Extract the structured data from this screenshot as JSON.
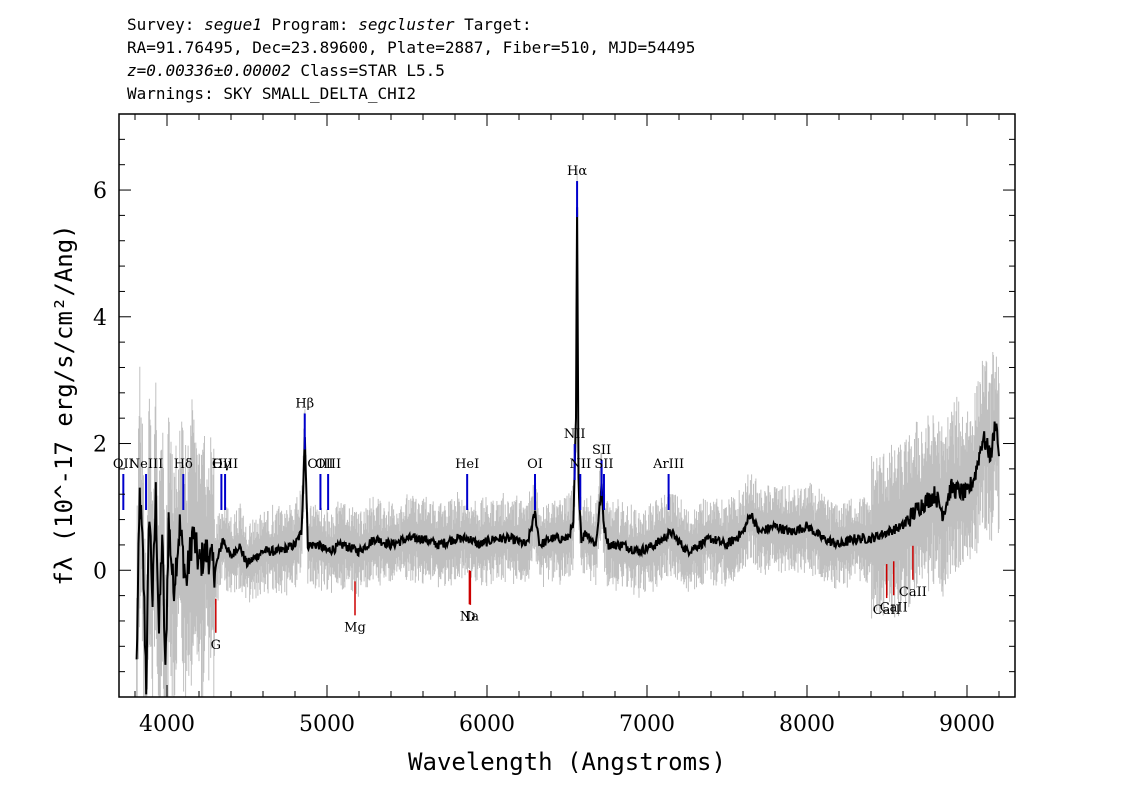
{
  "header": {
    "line1_a": "Survey: ",
    "survey": "segue1",
    "line1_b": " Program: ",
    "program": "segcluster",
    "line1_c": " Target:",
    "line2": "RA=91.76495, Dec=23.89600, Plate=2887, Fiber=510, MJD=54495",
    "redshift": "z=0.00336±0.00002",
    "class_text": " Class=STAR L5.5",
    "line4": "Warnings: SKY SMALL_DELTA_CHI2"
  },
  "chart_data": {
    "type": "line",
    "xlabel": "Wavelength (Angstroms)",
    "ylabel": "fλ (10^-17 erg/s/cm²/Ang)",
    "xlim": [
      3700,
      9300
    ],
    "ylim": [
      -2.0,
      7.2
    ],
    "x_ticks": [
      4000,
      5000,
      6000,
      7000,
      8000,
      9000
    ],
    "y_ticks": [
      0,
      2,
      4,
      6
    ],
    "series": [
      {
        "color": "#000000",
        "x": [
          3810,
          3830,
          3850,
          3870,
          3890,
          3910,
          3930,
          3950,
          3970,
          3990,
          4010,
          4040,
          4080,
          4120,
          4160,
          4200,
          4250,
          4300,
          4350,
          4400,
          4450,
          4500,
          4600,
          4700,
          4800,
          4840,
          4862,
          4880,
          4950,
          5000,
          5100,
          5200,
          5300,
          5400,
          5500,
          5600,
          5700,
          5800,
          5890,
          5950,
          6050,
          6150,
          6250,
          6300,
          6330,
          6400,
          6500,
          6540,
          6556,
          6563,
          6572,
          6590,
          6620,
          6680,
          6716,
          6731,
          6760,
          6850,
          6950,
          7050,
          7150,
          7250,
          7400,
          7500,
          7600,
          7650,
          7700,
          7800,
          7900,
          8000,
          8100,
          8200,
          8300,
          8400,
          8500,
          8600,
          8700,
          8800,
          8850,
          8900,
          9000,
          9050,
          9100,
          9150,
          9180,
          9200
        ],
        "y": [
          -1.5,
          1.2,
          0.2,
          -1.8,
          1.0,
          -0.5,
          1.2,
          -1.0,
          0.6,
          -1.7,
          0.8,
          -0.3,
          0.7,
          -0.2,
          0.6,
          0.1,
          0.3,
          0.0,
          0.5,
          0.2,
          0.4,
          0.1,
          0.3,
          0.3,
          0.4,
          0.6,
          2.1,
          0.4,
          0.4,
          0.3,
          0.4,
          0.3,
          0.5,
          0.4,
          0.5,
          0.5,
          0.4,
          0.5,
          0.5,
          0.4,
          0.5,
          0.5,
          0.4,
          0.9,
          0.4,
          0.5,
          0.5,
          0.7,
          2.4,
          5.7,
          1.4,
          0.5,
          0.6,
          0.4,
          1.3,
          0.7,
          0.4,
          0.4,
          0.3,
          0.4,
          0.6,
          0.3,
          0.5,
          0.4,
          0.6,
          0.9,
          0.6,
          0.7,
          0.6,
          0.7,
          0.5,
          0.4,
          0.5,
          0.5,
          0.6,
          0.7,
          1.0,
          1.2,
          0.9,
          1.3,
          1.2,
          1.5,
          2.1,
          1.8,
          2.4,
          1.8
        ]
      }
    ],
    "emission_lines": [
      {
        "label": "OII",
        "x": 3727
      },
      {
        "label": "NeIII",
        "x": 3869
      },
      {
        "label": "Hδ",
        "x": 4102
      },
      {
        "label": "Hγ",
        "x": 4340
      },
      {
        "label": "OIII",
        "x": 4363
      },
      {
        "label": "Hβ",
        "x": 4861
      },
      {
        "label": "OIII",
        "x": 4959
      },
      {
        "label": "OIII",
        "x": 5007
      },
      {
        "label": "HeI",
        "x": 5876
      },
      {
        "label": "OI",
        "x": 6300
      },
      {
        "label": "NII",
        "x": 6548
      },
      {
        "label": "Hα",
        "x": 6563
      },
      {
        "label": "NII",
        "x": 6583
      },
      {
        "label": "SII",
        "x": 6716
      },
      {
        "label": "SII",
        "x": 6731
      },
      {
        "label": "ArIII",
        "x": 7135
      }
    ],
    "absorption_lines": [
      {
        "label": "G",
        "x": 4305
      },
      {
        "label": "Mg",
        "x": 5175
      },
      {
        "label": "Na",
        "x": 5890
      },
      {
        "label": "D",
        "x": 5896
      },
      {
        "label": "CaII",
        "x": 8498
      },
      {
        "label": "CaII",
        "x": 8542
      },
      {
        "label": "CaII",
        "x": 8662
      }
    ],
    "colors": {
      "flux": "#000000",
      "noise": "#c0c0c0",
      "emission": "#0000cc",
      "absorption": "#cc0000"
    }
  }
}
